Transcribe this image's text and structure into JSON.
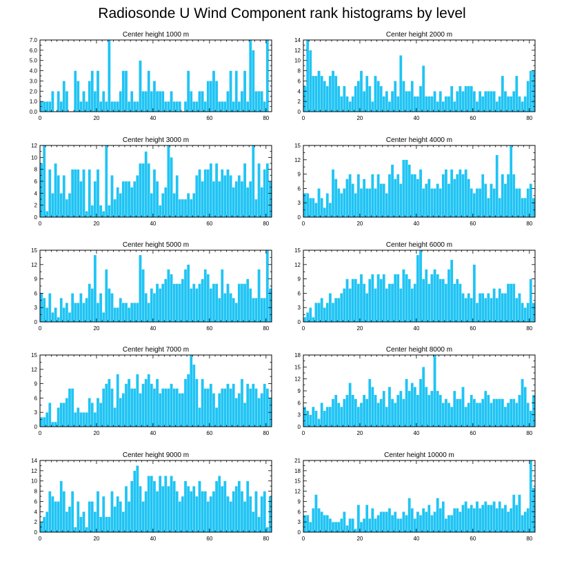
{
  "title": "Radiosonde U Wind Component rank histograms by level",
  "bar_color": "#20c4f4",
  "chart_data": [
    {
      "type": "bar",
      "title": "Center height 1000 m",
      "x_ticks": [
        0,
        20,
        40,
        60,
        80
      ],
      "xlim": [
        0,
        82
      ],
      "ylim": [
        0,
        7
      ],
      "y_ticks": [
        "0.0",
        "1.0",
        "2.0",
        "3.0",
        "4.0",
        "5.0",
        "6.0",
        "7.0"
      ],
      "y_tick_values": [
        0,
        1,
        2,
        3,
        4,
        5,
        6,
        7
      ],
      "values": [
        1,
        1,
        1,
        1,
        2,
        0,
        2,
        1,
        3,
        2,
        0,
        0,
        4,
        3,
        1,
        2,
        1,
        3,
        4,
        2,
        4,
        1,
        2,
        1,
        7,
        1,
        1,
        1,
        2,
        4,
        4,
        1,
        2,
        1,
        1,
        5,
        2,
        2,
        4,
        2,
        3,
        2,
        2,
        2,
        1,
        1,
        2,
        1,
        1,
        1,
        0,
        1,
        4,
        2,
        1,
        1,
        2,
        2,
        1,
        3,
        3,
        4,
        3,
        1,
        1,
        1,
        2,
        4,
        1,
        4,
        1,
        2,
        4,
        1,
        7,
        6,
        2,
        2,
        2,
        1,
        7
      ]
    },
    {
      "type": "bar",
      "title": "Center height 2000 m",
      "x_ticks": [
        0,
        20,
        40,
        60,
        80
      ],
      "xlim": [
        0,
        82
      ],
      "ylim": [
        0,
        14
      ],
      "y_ticks": [
        "0",
        "2",
        "4",
        "6",
        "8",
        "10",
        "12",
        "14"
      ],
      "y_tick_values": [
        0,
        2,
        4,
        6,
        8,
        10,
        12,
        14
      ],
      "values": [
        5,
        14,
        12,
        7,
        7,
        8,
        7,
        6,
        5,
        7,
        8,
        7,
        5,
        3,
        5,
        3,
        2,
        3,
        5,
        6,
        8,
        4,
        7,
        5,
        2,
        7,
        6,
        5,
        3,
        4,
        2,
        4,
        6,
        3,
        11,
        6,
        4,
        4,
        6,
        3,
        3,
        5,
        9,
        3,
        3,
        3,
        4,
        2,
        4,
        2,
        3,
        3,
        5,
        2,
        4,
        5,
        4,
        5,
        5,
        5,
        4,
        2,
        4,
        3,
        4,
        4,
        4,
        4,
        2,
        3,
        7,
        4,
        3,
        3,
        4,
        7,
        3,
        2,
        3,
        6,
        8,
        8
      ]
    },
    {
      "type": "bar",
      "title": "Center height 3000 m",
      "x_ticks": [
        0,
        20,
        40,
        60,
        80
      ],
      "xlim": [
        0,
        82
      ],
      "ylim": [
        0,
        12
      ],
      "y_ticks": [
        "0",
        "2",
        "4",
        "6",
        "8",
        "10",
        "12"
      ],
      "y_tick_values": [
        0,
        2,
        4,
        6,
        8,
        10,
        12
      ],
      "values": [
        9,
        12,
        1,
        8,
        4,
        9,
        7,
        4,
        7,
        3,
        4,
        8,
        8,
        8,
        6,
        8,
        1,
        8,
        2,
        6,
        8,
        2,
        1,
        12,
        2,
        7,
        3,
        5,
        4,
        6,
        6,
        6,
        5,
        6,
        7,
        9,
        9,
        11,
        9,
        4,
        8,
        6,
        2,
        4,
        5,
        12,
        10,
        4,
        7,
        3,
        3,
        3,
        4,
        3,
        4,
        7,
        8,
        6,
        8,
        8,
        9,
        6,
        9,
        6,
        8,
        7,
        8,
        7,
        5,
        6,
        7,
        6,
        9,
        5,
        6,
        12,
        3,
        9,
        5,
        8,
        9,
        6
      ]
    },
    {
      "type": "bar",
      "title": "Center height 4000 m",
      "x_ticks": [
        0,
        20,
        40,
        60,
        80
      ],
      "xlim": [
        0,
        82
      ],
      "ylim": [
        0,
        15
      ],
      "y_ticks": [
        "0",
        "3",
        "6",
        "9",
        "12",
        "15"
      ],
      "y_tick_values": [
        0,
        3,
        6,
        9,
        12,
        15
      ],
      "values": [
        5,
        5,
        4,
        4,
        3,
        6,
        4,
        2,
        5,
        3,
        10,
        8,
        6,
        5,
        6,
        8,
        9,
        7,
        5,
        9,
        6,
        8,
        6,
        6,
        9,
        6,
        9,
        7,
        7,
        5,
        9,
        11,
        8,
        9,
        7,
        12,
        12,
        11,
        9,
        9,
        8,
        10,
        6,
        7,
        8,
        6,
        6,
        7,
        6,
        9,
        10,
        7,
        10,
        8,
        9,
        10,
        9,
        10,
        8,
        6,
        5,
        6,
        6,
        9,
        7,
        4,
        7,
        6,
        13,
        4,
        9,
        7,
        9,
        15,
        9,
        6,
        6,
        4,
        4,
        6,
        7,
        4
      ]
    },
    {
      "type": "bar",
      "title": "Center height 5000 m",
      "x_ticks": [
        0,
        20,
        40,
        60,
        80
      ],
      "xlim": [
        0,
        82
      ],
      "ylim": [
        0,
        15
      ],
      "y_ticks": [
        "0",
        "3",
        "6",
        "9",
        "12",
        "15"
      ],
      "y_tick_values": [
        0,
        3,
        6,
        9,
        12,
        15
      ],
      "values": [
        6,
        5,
        3,
        6,
        2,
        3,
        1,
        5,
        3,
        4,
        2,
        6,
        4,
        4,
        6,
        4,
        5,
        8,
        7,
        14,
        4,
        6,
        2,
        11,
        7,
        6,
        3,
        3,
        5,
        4,
        4,
        3,
        4,
        4,
        4,
        14,
        11,
        6,
        4,
        7,
        6,
        8,
        7,
        8,
        9,
        11,
        10,
        8,
        8,
        8,
        9,
        11,
        12,
        7,
        8,
        7,
        8,
        9,
        11,
        10,
        7,
        8,
        8,
        5,
        11,
        6,
        8,
        6,
        5,
        4,
        8,
        8,
        8,
        9,
        7,
        5,
        5,
        11,
        5,
        5,
        15,
        7
      ]
    },
    {
      "type": "bar",
      "title": "Center height 6000 m",
      "x_ticks": [
        0,
        20,
        40,
        60,
        80
      ],
      "xlim": [
        0,
        82
      ],
      "ylim": [
        0,
        15
      ],
      "y_ticks": [
        "0",
        "3",
        "6",
        "9",
        "12",
        "15"
      ],
      "y_tick_values": [
        0,
        3,
        6,
        9,
        12,
        15
      ],
      "values": [
        1,
        2,
        3,
        1,
        4,
        4,
        5,
        3,
        4,
        6,
        4,
        5,
        5,
        6,
        7,
        9,
        7,
        9,
        9,
        8,
        10,
        8,
        6,
        9,
        10,
        7,
        10,
        9,
        10,
        7,
        8,
        8,
        10,
        10,
        7,
        11,
        10,
        9,
        7,
        8,
        14,
        15,
        9,
        11,
        8,
        10,
        11,
        10,
        9,
        9,
        8,
        11,
        13,
        8,
        9,
        8,
        6,
        5,
        6,
        5,
        12,
        4,
        6,
        6,
        5,
        6,
        5,
        7,
        5,
        7,
        6,
        6,
        8,
        8,
        8,
        5,
        6,
        4,
        3,
        4,
        9,
        4
      ]
    },
    {
      "type": "bar",
      "title": "Center height 7000 m",
      "x_ticks": [
        0,
        20,
        40,
        60,
        80
      ],
      "xlim": [
        0,
        82
      ],
      "ylim": [
        0,
        15
      ],
      "y_ticks": [
        "0",
        "3",
        "6",
        "9",
        "12",
        "15"
      ],
      "y_tick_values": [
        0,
        3,
        6,
        9,
        12,
        15
      ],
      "values": [
        2,
        2,
        3,
        5,
        1,
        1,
        4,
        5,
        5,
        6,
        8,
        8,
        3,
        4,
        3,
        3,
        3,
        6,
        5,
        3,
        6,
        5,
        8,
        9,
        10,
        8,
        4,
        11,
        6,
        7,
        9,
        10,
        8,
        8,
        11,
        7,
        9,
        10,
        11,
        9,
        8,
        10,
        7,
        8,
        8,
        8,
        9,
        8,
        8,
        7,
        7,
        10,
        11,
        15,
        13,
        10,
        4,
        10,
        8,
        8,
        9,
        7,
        4,
        7,
        8,
        8,
        9,
        8,
        9,
        6,
        7,
        10,
        5,
        9,
        8,
        9,
        8,
        6,
        7,
        9,
        8,
        6
      ]
    },
    {
      "type": "bar",
      "title": "Center height 8000 m",
      "x_ticks": [
        0,
        20,
        40,
        60,
        80
      ],
      "xlim": [
        0,
        82
      ],
      "ylim": [
        0,
        18
      ],
      "y_ticks": [
        "0",
        "3",
        "6",
        "9",
        "12",
        "15",
        "18"
      ],
      "y_tick_values": [
        0,
        3,
        6,
        9,
        12,
        15,
        18
      ],
      "values": [
        5,
        4,
        3,
        5,
        4,
        2,
        6,
        4,
        5,
        5,
        7,
        8,
        6,
        5,
        7,
        8,
        11,
        8,
        7,
        5,
        6,
        8,
        7,
        12,
        10,
        8,
        6,
        7,
        9,
        5,
        10,
        7,
        6,
        8,
        9,
        7,
        12,
        9,
        11,
        10,
        8,
        12,
        15,
        10,
        8,
        9,
        18,
        9,
        8,
        6,
        7,
        6,
        5,
        9,
        7,
        7,
        10,
        5,
        6,
        8,
        7,
        6,
        6,
        7,
        9,
        8,
        6,
        7,
        7,
        7,
        7,
        5,
        6,
        7,
        7,
        6,
        8,
        12,
        10,
        6,
        4,
        8
      ]
    },
    {
      "type": "bar",
      "title": "Center height 9000 m",
      "x_ticks": [
        0,
        20,
        40,
        60,
        80
      ],
      "xlim": [
        0,
        82
      ],
      "ylim": [
        0,
        14
      ],
      "y_ticks": [
        "0",
        "2",
        "4",
        "6",
        "8",
        "10",
        "12",
        "14"
      ],
      "y_tick_values": [
        0,
        2,
        4,
        6,
        8,
        10,
        12,
        14
      ],
      "values": [
        2,
        3,
        4,
        8,
        7,
        6,
        6,
        10,
        8,
        4,
        5,
        8,
        1,
        6,
        3,
        4,
        1,
        6,
        6,
        4,
        8,
        3,
        7,
        3,
        3,
        8,
        5,
        7,
        6,
        4,
        9,
        6,
        10,
        12,
        13,
        9,
        6,
        8,
        11,
        11,
        10,
        8,
        11,
        9,
        11,
        9,
        11,
        10,
        8,
        6,
        7,
        10,
        9,
        8,
        9,
        7,
        10,
        8,
        8,
        6,
        7,
        8,
        10,
        11,
        9,
        10,
        7,
        6,
        8,
        9,
        10,
        8,
        6,
        10,
        7,
        4,
        8,
        3,
        7,
        8,
        1,
        7
      ]
    },
    {
      "type": "bar",
      "title": "Center height 10000 m",
      "x_ticks": [
        0,
        20,
        40,
        60,
        80
      ],
      "xlim": [
        0,
        82
      ],
      "ylim": [
        0,
        21
      ],
      "y_ticks": [
        "0",
        "3",
        "6",
        "9",
        "12",
        "15",
        "18",
        "21"
      ],
      "y_tick_values": [
        0,
        3,
        6,
        9,
        12,
        15,
        18,
        21
      ],
      "values": [
        5,
        5,
        3,
        7,
        11,
        7,
        6,
        5,
        5,
        4,
        3,
        3,
        3,
        4,
        6,
        2,
        4,
        4,
        1,
        8,
        3,
        4,
        8,
        4,
        7,
        4,
        5,
        6,
        6,
        6,
        7,
        5,
        6,
        4,
        4,
        6,
        5,
        10,
        7,
        4,
        6,
        5,
        7,
        6,
        8,
        5,
        6,
        10,
        7,
        9,
        4,
        5,
        5,
        7,
        7,
        6,
        8,
        9,
        7,
        8,
        7,
        9,
        7,
        8,
        9,
        8,
        8,
        9,
        7,
        9,
        7,
        8,
        6,
        7,
        11,
        8,
        11,
        5,
        6,
        7,
        21,
        13
      ]
    }
  ]
}
